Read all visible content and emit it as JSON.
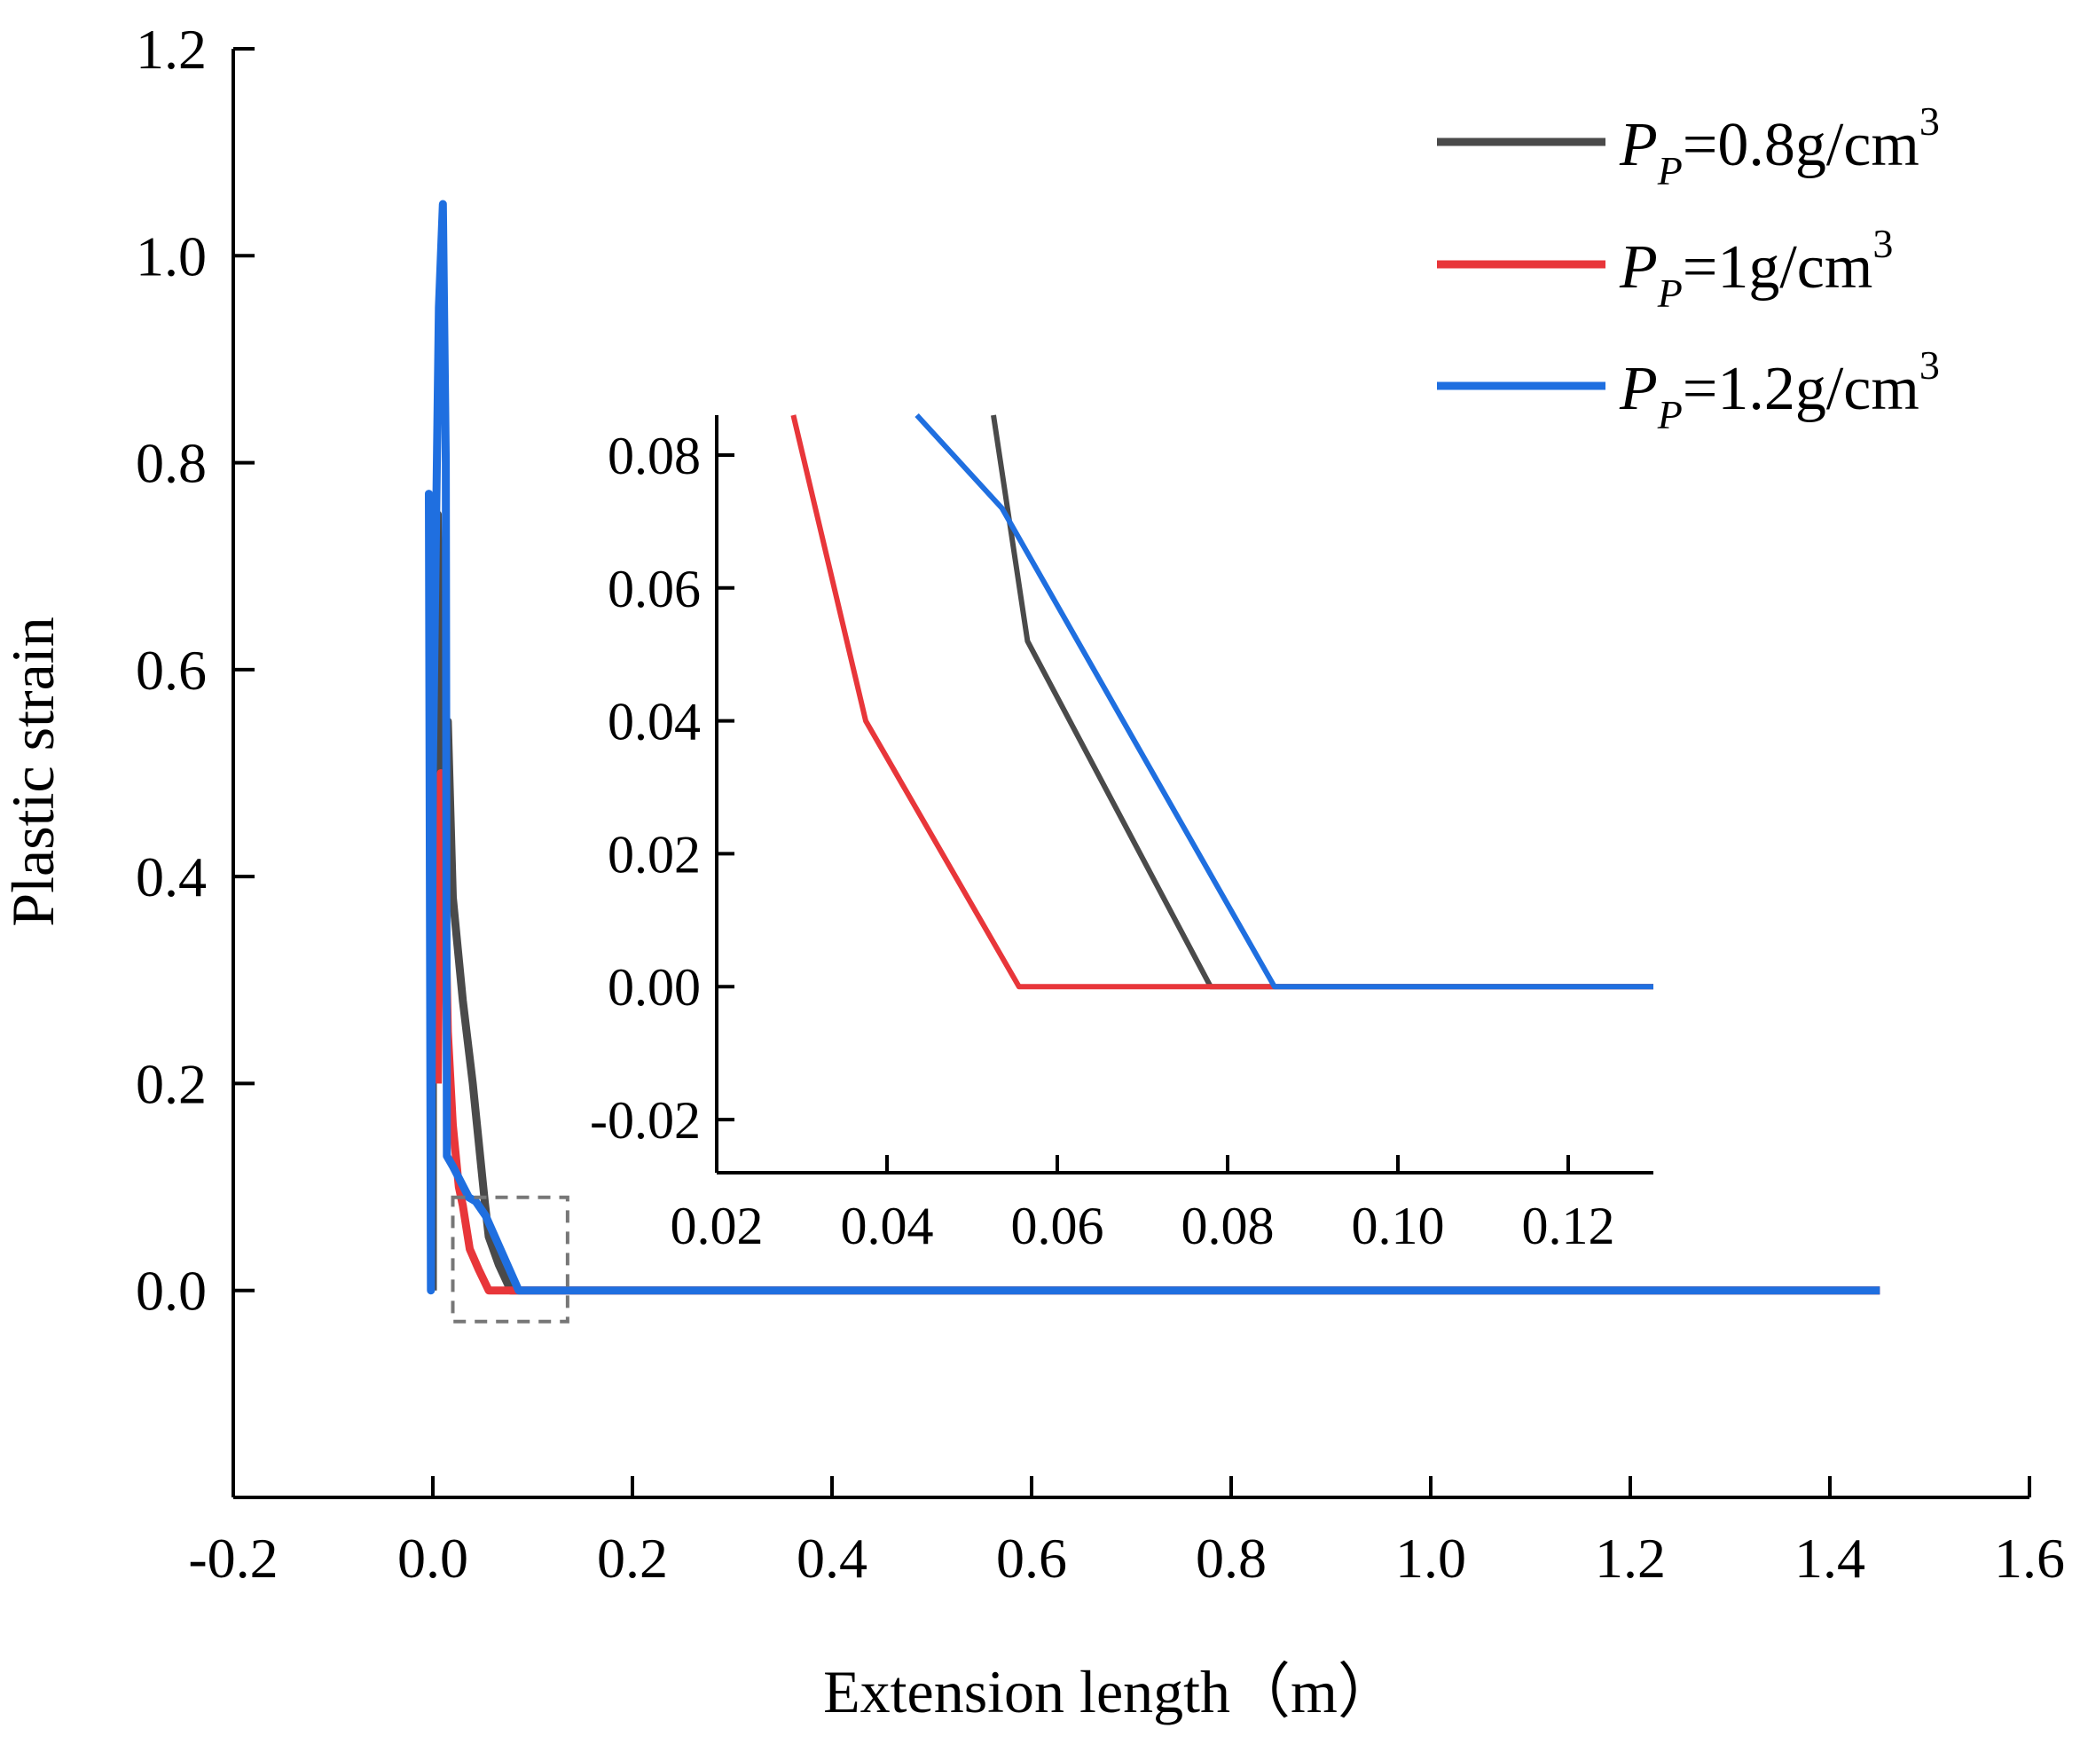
{
  "chart_data": [
    {
      "type": "line",
      "role": "main",
      "title": "",
      "xlabel": "Extension length（m）",
      "ylabel": "Plastic strain",
      "xlim": [
        -0.2,
        1.6
      ],
      "ylim": [
        -0.2,
        1.2
      ],
      "xticks": [
        -0.2,
        0.0,
        0.2,
        0.4,
        0.6,
        0.8,
        1.0,
        1.2,
        1.4,
        1.6
      ],
      "xtick_labels": [
        "-0.2",
        "0.0",
        "0.2",
        "0.4",
        "0.6",
        "0.8",
        "1.0",
        "1.2",
        "1.4",
        "1.6"
      ],
      "yticks": [
        0.0,
        0.2,
        0.4,
        0.6,
        0.8,
        1.0,
        1.2
      ],
      "ytick_labels": [
        "0.0",
        "0.2",
        "0.4",
        "0.6",
        "0.8",
        "1.0",
        "1.2"
      ],
      "grid": false,
      "legend_position": "top-right",
      "series": [
        {
          "name": "PP=0.8g/cm3",
          "color": "#4a4a4a",
          "points": [
            [
              0.0,
              0.0
            ],
            [
              0.0,
              0.3
            ],
            [
              0.005,
              0.75
            ],
            [
              0.01,
              0.4
            ],
            [
              0.015,
              0.55
            ],
            [
              0.02,
              0.38
            ],
            [
              0.03,
              0.28
            ],
            [
              0.04,
              0.2
            ],
            [
              0.052,
              0.086
            ],
            [
              0.056,
              0.052
            ],
            [
              0.066,
              0.025
            ],
            [
              0.078,
              0.0
            ],
            [
              1.45,
              0.0
            ]
          ]
        },
        {
          "name": "PP=1g/cm3",
          "color": "#e8363a",
          "points": [
            [
              0.005,
              0.2
            ],
            [
              0.008,
              0.5
            ],
            [
              0.012,
              0.4
            ],
            [
              0.015,
              0.25
            ],
            [
              0.02,
              0.16
            ],
            [
              0.026,
              0.1
            ],
            [
              0.03,
              0.082
            ],
            [
              0.037,
              0.04
            ],
            [
              0.046,
              0.02
            ],
            [
              0.056,
              0.0
            ],
            [
              1.45,
              0.0
            ]
          ]
        },
        {
          "name": "PP=1.2g/cm3",
          "color": "#1f6fe0",
          "points": [
            [
              -0.002,
              0.0
            ],
            [
              -0.004,
              0.77
            ],
            [
              -0.002,
              0.0
            ],
            [
              0.0,
              0.5
            ],
            [
              0.006,
              0.95
            ],
            [
              0.01,
              1.05
            ],
            [
              0.013,
              0.8
            ],
            [
              0.014,
              0.13
            ],
            [
              0.02,
              0.12
            ],
            [
              0.036,
              0.09
            ],
            [
              0.043,
              0.086
            ],
            [
              0.053,
              0.072
            ],
            [
              0.086,
              0.0
            ],
            [
              1.45,
              0.0
            ]
          ]
        }
      ],
      "annotations": [
        {
          "type": "zoom-box",
          "x_range": [
            0.02,
            0.135
          ],
          "y_range": [
            -0.03,
            0.09
          ],
          "style": "dashed",
          "color": "#777777"
        }
      ]
    },
    {
      "type": "line",
      "role": "inset",
      "title": "",
      "xlabel": "",
      "ylabel": "",
      "xlim": [
        0.02,
        0.13
      ],
      "ylim": [
        -0.028,
        0.086
      ],
      "xticks": [
        0.02,
        0.04,
        0.06,
        0.08,
        0.1,
        0.12
      ],
      "xtick_labels": [
        "0.02",
        "0.04",
        "0.06",
        "0.08",
        "0.10",
        "0.12"
      ],
      "yticks": [
        -0.02,
        0.0,
        0.02,
        0.04,
        0.06,
        0.08
      ],
      "ytick_labels": [
        "-0.02",
        "0.00",
        "0.02",
        "0.04",
        "0.06",
        "0.08"
      ],
      "grid": false,
      "series": [
        {
          "name": "PP=0.8g/cm3",
          "color": "#4a4a4a",
          "points": [
            [
              0.0525,
              0.086
            ],
            [
              0.0565,
              0.052
            ],
            [
              0.078,
              0.0
            ],
            [
              0.13,
              0.0
            ]
          ]
        },
        {
          "name": "PP=1g/cm3",
          "color": "#e8363a",
          "points": [
            [
              0.029,
              0.086
            ],
            [
              0.0375,
              0.04
            ],
            [
              0.0555,
              0.0
            ],
            [
              0.13,
              0.0
            ]
          ]
        },
        {
          "name": "PP=1.2g/cm3",
          "color": "#1f6fe0",
          "points": [
            [
              0.0435,
              0.086
            ],
            [
              0.0535,
              0.072
            ],
            [
              0.0855,
              0.0
            ],
            [
              0.13,
              0.0
            ]
          ]
        }
      ]
    }
  ],
  "legend": {
    "items": [
      {
        "symbol_main": "P",
        "symbol_sub": "P",
        "value": "=0.8g/cm",
        "sup": "3",
        "color": "#4a4a4a"
      },
      {
        "symbol_main": "P",
        "symbol_sub": "P",
        "value": "=1g/cm",
        "sup": "3",
        "color": "#e8363a"
      },
      {
        "symbol_main": "P",
        "symbol_sub": "P",
        "value": "=1.2g/cm",
        "sup": "3",
        "color": "#1f6fe0"
      }
    ]
  }
}
